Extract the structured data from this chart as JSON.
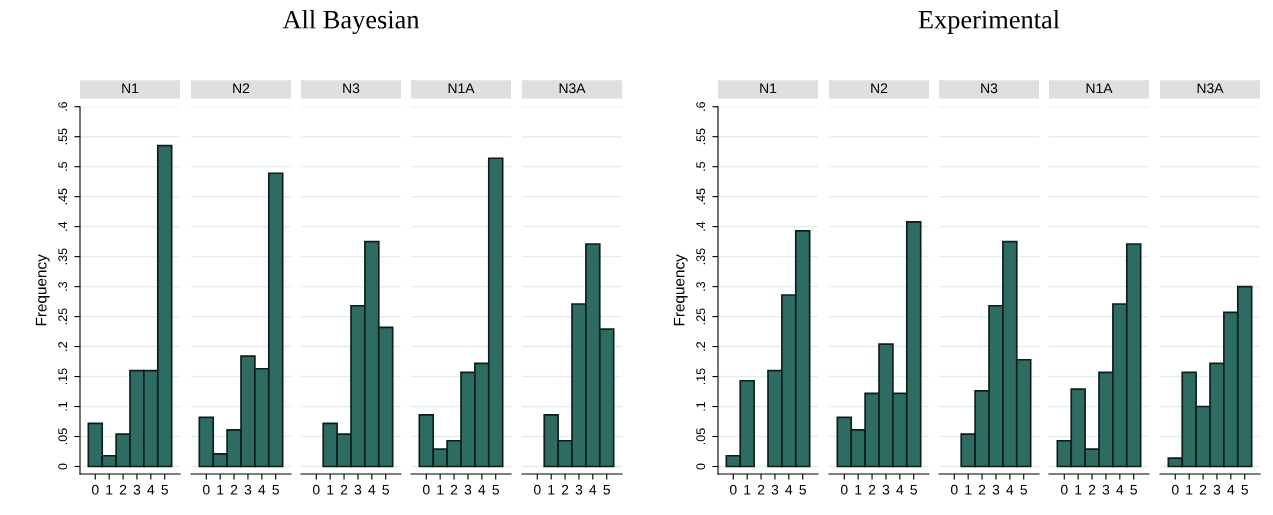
{
  "chart_data": [
    {
      "type": "bar",
      "subtitle": "N1",
      "ylabel": "Frequency",
      "categories": [
        "0",
        "1",
        "2",
        "3",
        "4",
        "5"
      ],
      "values": [
        0.072,
        0.018,
        0.054,
        0.16,
        0.16,
        0.535
      ],
      "color": "#2d6b63",
      "ylim": [
        -0.0125,
        0.6
      ],
      "yticks": [
        0,
        {
          "value": 0.05,
          "label": ".05"
        },
        {
          "value": 0.1,
          "label": ".1"
        },
        {
          "value": 0.15,
          "label": ".15"
        },
        {
          "value": 0.2,
          "label": ".2"
        },
        {
          "value": 0.25,
          "label": ".25"
        },
        {
          "value": 0.3,
          "label": ".3"
        },
        {
          "value": 0.35,
          "label": ".35"
        },
        {
          "value": 0.4,
          "label": ".4"
        },
        {
          "value": 0.45,
          "label": ".45"
        },
        {
          "value": 0.5,
          "label": ".5"
        },
        {
          "value": 0.55,
          "label": ".55"
        },
        {
          "value": 0.6,
          "label": ".6"
        }
      ],
      "grid": "y"
    },
    {
      "type": "bar",
      "subtitle": "N2",
      "categories": [
        "0",
        "1",
        "2",
        "3",
        "4",
        "5"
      ],
      "values": [
        0.082,
        0.021,
        0.061,
        0.184,
        0.163,
        0.489
      ],
      "color": "#2d6b63",
      "ylim": [
        -0.0125,
        0.6
      ],
      "yticks": [
        0,
        0.05,
        0.1,
        0.15,
        0.2,
        0.25,
        0.3,
        0.35,
        0.4,
        0.45,
        0.5,
        0.55,
        0.6
      ],
      "grid": "y",
      "tick_labels": "x"
    },
    {
      "type": "bar",
      "title": "All Bayesian",
      "subtitle": "N3",
      "categories": [
        "0",
        "1",
        "2",
        "3",
        "4",
        "5"
      ],
      "values": [
        0,
        0.072,
        0.054,
        0.268,
        0.375,
        0.232
      ],
      "color": "#2d6b63",
      "ylim": [
        -0.0125,
        0.6
      ],
      "yticks": [
        0,
        0.05,
        0.1,
        0.15,
        0.2,
        0.25,
        0.3,
        0.35,
        0.4,
        0.45,
        0.5,
        0.55,
        0.6
      ],
      "grid": "y",
      "tick_labels": "x"
    },
    {
      "type": "bar",
      "subtitle": "N1A",
      "categories": [
        "0",
        "1",
        "2",
        "3",
        "4",
        "5"
      ],
      "values": [
        0.086,
        0.029,
        0.043,
        0.157,
        0.172,
        0.514
      ],
      "color": "#2d6b63",
      "ylim": [
        -0.0125,
        0.6
      ],
      "yticks": [
        0,
        0.05,
        0.1,
        0.15,
        0.2,
        0.25,
        0.3,
        0.35,
        0.4,
        0.45,
        0.5,
        0.55,
        0.6
      ],
      "grid": "y",
      "tick_labels": "x"
    },
    {
      "type": "bar",
      "subtitle": "N3A",
      "categories": [
        "0",
        "1",
        "2",
        "3",
        "4",
        "5"
      ],
      "values": [
        0,
        0.086,
        0.043,
        0.271,
        0.371,
        0.229
      ],
      "color": "#2d6b63",
      "ylim": [
        -0.0125,
        0.6
      ],
      "yticks": [
        0,
        0.05,
        0.1,
        0.15,
        0.2,
        0.25,
        0.3,
        0.35,
        0.4,
        0.45,
        0.5,
        0.55,
        0.6
      ],
      "grid": "y",
      "tick_labels": "x"
    },
    {
      "type": "bar",
      "subtitle": "N1",
      "ylabel": "Frequency",
      "categories": [
        "0",
        "1",
        "2",
        "3",
        "4",
        "5"
      ],
      "values": [
        0.018,
        0.143,
        0,
        0.16,
        0.286,
        0.393
      ],
      "color": "#2d6b63",
      "ylim": [
        -0.0125,
        0.6
      ],
      "yticks": [
        0,
        {
          "value": 0.05,
          "label": ".05"
        },
        {
          "value": 0.1,
          "label": ".1"
        },
        {
          "value": 0.15,
          "label": ".15"
        },
        {
          "value": 0.2,
          "label": ".2"
        },
        {
          "value": 0.25,
          "label": ".25"
        },
        {
          "value": 0.3,
          "label": ".3"
        },
        {
          "value": 0.35,
          "label": ".35"
        },
        {
          "value": 0.4,
          "label": ".4"
        },
        {
          "value": 0.45,
          "label": ".45"
        },
        {
          "value": 0.5,
          "label": ".5"
        },
        {
          "value": 0.55,
          "label": ".55"
        },
        {
          "value": 0.6,
          "label": ".6"
        }
      ],
      "grid": "y"
    },
    {
      "type": "bar",
      "subtitle": "N2",
      "categories": [
        "0",
        "1",
        "2",
        "3",
        "4",
        "5"
      ],
      "values": [
        0.082,
        0.061,
        0.122,
        0.204,
        0.122,
        0.408
      ],
      "color": "#2d6b63",
      "ylim": [
        -0.0125,
        0.6
      ],
      "yticks": [
        0,
        0.05,
        0.1,
        0.15,
        0.2,
        0.25,
        0.3,
        0.35,
        0.4,
        0.45,
        0.5,
        0.55,
        0.6
      ],
      "grid": "y",
      "tick_labels": "x"
    },
    {
      "type": "bar",
      "title": "Experimental",
      "subtitle": "N3",
      "categories": [
        "0",
        "1",
        "2",
        "3",
        "4",
        "5"
      ],
      "values": [
        0,
        0.054,
        0.126,
        0.268,
        0.375,
        0.178
      ],
      "color": "#2d6b63",
      "ylim": [
        -0.0125,
        0.6
      ],
      "yticks": [
        0,
        0.05,
        0.1,
        0.15,
        0.2,
        0.25,
        0.3,
        0.35,
        0.4,
        0.45,
        0.5,
        0.55,
        0.6
      ],
      "grid": "y",
      "tick_labels": "x"
    },
    {
      "type": "bar",
      "subtitle": "N1A",
      "categories": [
        "0",
        "1",
        "2",
        "3",
        "4",
        "5"
      ],
      "values": [
        0.043,
        0.129,
        0.029,
        0.157,
        0.271,
        0.371
      ],
      "color": "#2d6b63",
      "ylim": [
        -0.0125,
        0.6
      ],
      "yticks": [
        0,
        0.05,
        0.1,
        0.15,
        0.2,
        0.25,
        0.3,
        0.35,
        0.4,
        0.45,
        0.5,
        0.55,
        0.6
      ],
      "grid": "y",
      "tick_labels": "x"
    },
    {
      "type": "bar",
      "subtitle": "N3A",
      "categories": [
        "0",
        "1",
        "2",
        "3",
        "4",
        "5"
      ],
      "values": [
        0.014,
        0.157,
        0.1,
        0.172,
        0.257,
        0.3
      ],
      "color": "#2d6b63",
      "ylim": [
        -0.0125,
        0.6
      ],
      "yticks": [
        0,
        0.05,
        0.1,
        0.15,
        0.2,
        0.25,
        0.3,
        0.35,
        0.4,
        0.45,
        0.5,
        0.55,
        0.6
      ],
      "grid": "y",
      "tick_labels": "x"
    }
  ]
}
